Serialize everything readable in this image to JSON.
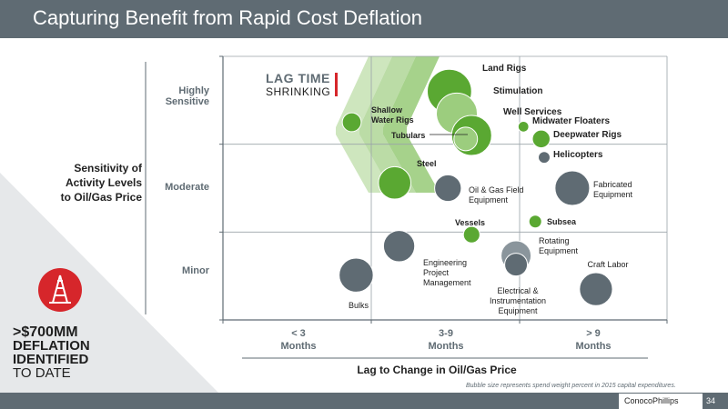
{
  "header": {
    "title": "Capturing Benefit from Rapid Cost Deflation"
  },
  "headline": {
    "line1": ">$700MM",
    "line2": "DEFLATION",
    "line3": "IDENTIFIED",
    "line4": "TO DATE"
  },
  "lag_time": {
    "line1": "LAG TIME",
    "line2": "SHRINKING"
  },
  "footnote": "Bubble size represents spend weight percent in 2015 capital expenditures.",
  "footer": {
    "logo": "ConocoPhillips",
    "page": "34"
  },
  "colors": {
    "green": "#5aa832",
    "light_green": "#9ccd7e",
    "gray": "#5f6b73",
    "red": "#d6262b"
  },
  "chart_data": {
    "type": "scatter",
    "xlabel": "Lag to Change in Oil/Gas Price",
    "ylabel_lines": [
      "Sensitivity of",
      "Activity Levels",
      "to Oil/Gas Price"
    ],
    "x_categories": [
      {
        "line1": "< 3",
        "line2": "Months"
      },
      {
        "line1": "3-9",
        "line2": "Months"
      },
      {
        "line1": "> 9",
        "line2": "Months"
      }
    ],
    "y_categories": [
      {
        "line1": "Minor",
        "line2": ""
      },
      {
        "line1": "Moderate",
        "line2": ""
      },
      {
        "line1": "Highly",
        "line2": "Sensitive"
      }
    ],
    "xlim": [
      0,
      3
    ],
    "ylim": [
      0,
      3
    ],
    "size_note": "Bubble size represents spend weight percent in 2015 capital expenditures.",
    "series": [
      {
        "label": "Land Rigs",
        "x": 1.53,
        "y": 2.6,
        "size": 5.0,
        "color": "#5aa832"
      },
      {
        "label": "Stimulation",
        "x": 1.58,
        "y": 2.35,
        "size": 4.2,
        "color": "#9ccd7e"
      },
      {
        "label": "Well Services",
        "x": 1.68,
        "y": 2.1,
        "size": 4.0,
        "color": "#5aa832"
      },
      {
        "label": "Tubulars",
        "x": 1.64,
        "y": 2.06,
        "size": 1.2,
        "color": "#9ccd7e"
      },
      {
        "label": "Shallow Water Rigs",
        "x": 0.87,
        "y": 2.25,
        "size": 0.7,
        "color": "#5aa832"
      },
      {
        "label": "Midwater Floaters",
        "x": 2.03,
        "y": 2.2,
        "size": 0.15,
        "color": "#5aa832"
      },
      {
        "label": "Deepwater Rigs",
        "x": 2.15,
        "y": 2.06,
        "size": 0.6,
        "color": "#5aa832"
      },
      {
        "label": "Helicopters",
        "x": 2.17,
        "y": 1.85,
        "size": 0.2,
        "color": "#5f6b73"
      },
      {
        "label": "Steel",
        "x": 1.16,
        "y": 1.56,
        "size": 2.5,
        "color": "#5aa832"
      },
      {
        "label": "Oil & Gas Field Equipment",
        "x": 1.52,
        "y": 1.5,
        "size": 1.6,
        "color": "#5f6b73"
      },
      {
        "label": "Fabricated Equipment",
        "x": 2.36,
        "y": 1.5,
        "size": 2.9,
        "color": "#5f6b73"
      },
      {
        "label": "Vessels",
        "x": 1.68,
        "y": 0.97,
        "size": 0.5,
        "color": "#5aa832"
      },
      {
        "label": "Subsea",
        "x": 2.11,
        "y": 1.12,
        "size": 0.25,
        "color": "#5aa832"
      },
      {
        "label": "Engineering Project Management",
        "x": 1.19,
        "y": 0.84,
        "size": 2.3,
        "color": "#5f6b73"
      },
      {
        "label": "Rotating Equipment",
        "x": 1.98,
        "y": 0.73,
        "size": 2.1,
        "color": "#8a959c"
      },
      {
        "label": "Electrical & Instrumentation Equipment",
        "x": 1.98,
        "y": 0.63,
        "size": 1.1,
        "color": "#5f6b73"
      },
      {
        "label": "Bulks",
        "x": 0.9,
        "y": 0.51,
        "size": 2.8,
        "color": "#5f6b73"
      },
      {
        "label": "Craft Labor",
        "x": 2.52,
        "y": 0.35,
        "size": 2.6,
        "color": "#5f6b73"
      }
    ]
  }
}
